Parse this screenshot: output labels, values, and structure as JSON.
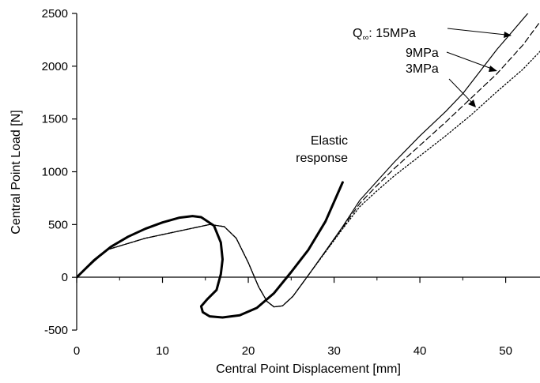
{
  "chart_data": {
    "type": "line",
    "title": "",
    "xlabel": "Central Point Displacement [mm]",
    "ylabel": "Central Point Load [N]",
    "xlim": [
      0,
      54
    ],
    "ylim": [
      -500,
      2500
    ],
    "x_ticks": [
      "0",
      "10",
      "20",
      "30",
      "40",
      "50"
    ],
    "y_ticks": [
      "-500",
      "0",
      "500",
      "1000",
      "1500",
      "2000",
      "2500"
    ],
    "grid": false,
    "series": [
      {
        "name": "Elastic response",
        "style": "solid-thick",
        "points": [
          [
            0,
            0
          ],
          [
            2,
            160
          ],
          [
            4,
            290
          ],
          [
            6,
            385
          ],
          [
            8,
            460
          ],
          [
            10,
            520
          ],
          [
            12,
            565
          ],
          [
            13.5,
            580
          ],
          [
            14.5,
            570
          ],
          [
            16,
            490
          ],
          [
            16.8,
            330
          ],
          [
            17,
            170
          ],
          [
            16.8,
            30
          ],
          [
            16.3,
            -120
          ],
          [
            15.2,
            -210
          ],
          [
            14.5,
            -275
          ],
          [
            14.7,
            -330
          ],
          [
            15.5,
            -370
          ],
          [
            17,
            -380
          ],
          [
            19,
            -360
          ],
          [
            21,
            -290
          ],
          [
            23,
            -150
          ],
          [
            25,
            50
          ],
          [
            27,
            260
          ],
          [
            29,
            530
          ],
          [
            31,
            900
          ]
        ]
      },
      {
        "name": "15MPa",
        "style": "solid",
        "points": [
          [
            0,
            0
          ],
          [
            3.5,
            260
          ],
          [
            8,
            370
          ],
          [
            12,
            440
          ],
          [
            15.5,
            500
          ],
          [
            17.2,
            480
          ],
          [
            18.6,
            370
          ],
          [
            20,
            140
          ],
          [
            21.2,
            -90
          ],
          [
            22.2,
            -230
          ],
          [
            23,
            -280
          ],
          [
            24,
            -270
          ],
          [
            25.2,
            -180
          ],
          [
            27,
            20
          ],
          [
            29,
            250
          ],
          [
            31,
            480
          ],
          [
            33,
            730
          ],
          [
            35,
            910
          ],
          [
            37,
            1090
          ],
          [
            40,
            1340
          ],
          [
            43,
            1570
          ],
          [
            45,
            1740
          ],
          [
            47,
            1950
          ],
          [
            49,
            2160
          ],
          [
            51,
            2350
          ],
          [
            53,
            2540
          ]
        ]
      },
      {
        "name": "9MPa",
        "style": "dashed",
        "points": [
          [
            0,
            0
          ],
          [
            3.5,
            260
          ],
          [
            8,
            370
          ],
          [
            12,
            440
          ],
          [
            15.5,
            500
          ],
          [
            17.2,
            480
          ],
          [
            18.6,
            370
          ],
          [
            20,
            140
          ],
          [
            21.2,
            -90
          ],
          [
            22.2,
            -230
          ],
          [
            23,
            -280
          ],
          [
            24,
            -270
          ],
          [
            25.2,
            -180
          ],
          [
            27,
            20
          ],
          [
            29,
            245
          ],
          [
            31,
            470
          ],
          [
            33,
            700
          ],
          [
            35,
            870
          ],
          [
            37,
            1030
          ],
          [
            40,
            1250
          ],
          [
            43,
            1470
          ],
          [
            46,
            1700
          ],
          [
            49,
            1930
          ],
          [
            52,
            2200
          ],
          [
            54,
            2420
          ]
        ]
      },
      {
        "name": "3MPa",
        "style": "dotted",
        "points": [
          [
            0,
            0
          ],
          [
            3.5,
            260
          ],
          [
            8,
            370
          ],
          [
            12,
            440
          ],
          [
            15.5,
            500
          ],
          [
            17.2,
            480
          ],
          [
            18.6,
            370
          ],
          [
            20,
            140
          ],
          [
            21.2,
            -90
          ],
          [
            22.2,
            -230
          ],
          [
            23,
            -280
          ],
          [
            24,
            -270
          ],
          [
            25.2,
            -180
          ],
          [
            27,
            20
          ],
          [
            29,
            240
          ],
          [
            31,
            460
          ],
          [
            33,
            670
          ],
          [
            35,
            820
          ],
          [
            37,
            960
          ],
          [
            40,
            1150
          ],
          [
            43,
            1340
          ],
          [
            46,
            1540
          ],
          [
            49,
            1760
          ],
          [
            52,
            1970
          ],
          [
            54,
            2140
          ]
        ]
      }
    ],
    "annotations": {
      "elastic_line1": "Elastic",
      "elastic_line2": "response",
      "q_label_prefix": "Q",
      "q_subscript": "∞",
      "q_label_15": ": 15MPa",
      "label_9": "9MPa",
      "label_3": "3MPa"
    }
  }
}
